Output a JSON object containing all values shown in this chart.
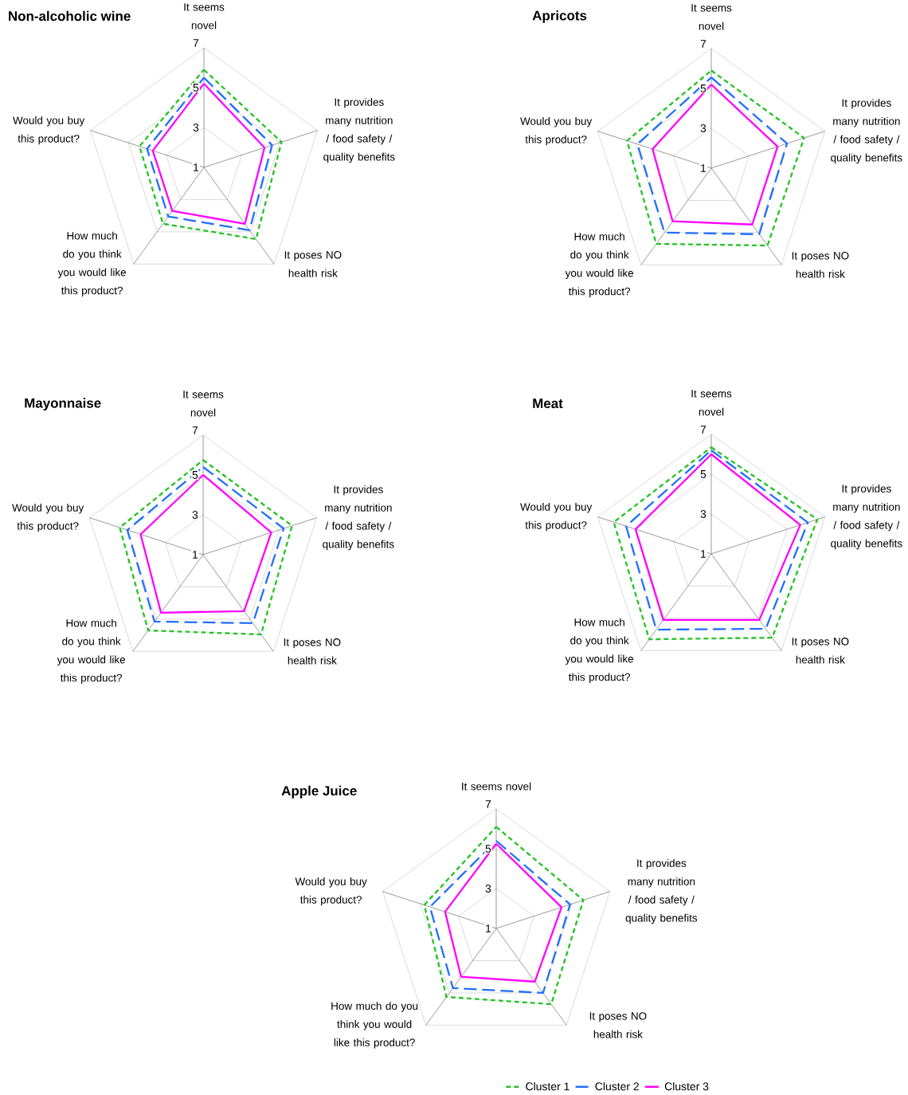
{
  "chart_data": [
    {
      "type": "radar",
      "title": "Non-alcoholic wine",
      "categories": [
        "It seems novel",
        "It provides many nutrition / food safety / quality benefits",
        "It poses NO health risk",
        "How much do you think you would like this product?",
        "Would you buy this product?"
      ],
      "ylim": [
        1,
        7
      ],
      "yticks": [
        1,
        3,
        5,
        7
      ],
      "grid": true,
      "series": [
        {
          "color": "#22c322",
          "line_style": "dashed",
          "values": [
            5.9,
            5.1,
            5.45,
            4.5,
            4.4
          ]
        },
        {
          "color": "#1f6fff",
          "line_style": "dashed",
          "values": [
            5.5,
            4.6,
            4.9,
            4.05,
            4.0
          ]
        },
        {
          "color": "#ff00ff",
          "line_style": "solid",
          "values": [
            5.2,
            4.2,
            4.5,
            3.7,
            3.7
          ]
        }
      ]
    },
    {
      "type": "radar",
      "title": "Apricots",
      "categories": [
        "It seems novel",
        "It provides many nutrition / food safety / quality benefits",
        "It poses NO health risk",
        "How much do you think you would like this product?",
        "Would you buy this product?"
      ],
      "ylim": [
        1,
        7
      ],
      "yticks": [
        1,
        3,
        5,
        7
      ],
      "grid": true,
      "series": [
        {
          "color": "#22c322",
          "line_style": "dashed",
          "values": [
            5.9,
            5.9,
            5.8,
            5.7,
            5.45
          ]
        },
        {
          "color": "#1f6fff",
          "line_style": "dashed",
          "values": [
            5.55,
            5.0,
            5.1,
            5.0,
            4.9
          ]
        },
        {
          "color": "#ff00ff",
          "line_style": "solid",
          "values": [
            5.2,
            4.5,
            4.5,
            4.3,
            4.1
          ]
        }
      ]
    },
    {
      "type": "radar",
      "title": "Mayonnaise",
      "categories": [
        "It seems novel",
        "It provides many nutrition / food safety / quality benefits",
        "It poses NO health risk",
        "How much do you think you would like this product?",
        "Would you buy this product?"
      ],
      "ylim": [
        1,
        7
      ],
      "yticks": [
        1,
        3,
        5,
        7
      ],
      "grid": true,
      "series": [
        {
          "color": "#22c322",
          "line_style": "dashed",
          "values": [
            5.75,
            5.7,
            5.95,
            5.7,
            5.4
          ]
        },
        {
          "color": "#1f6fff",
          "line_style": "dashed",
          "values": [
            5.4,
            5.25,
            5.25,
            5.15,
            5.0
          ]
        },
        {
          "color": "#ff00ff",
          "line_style": "solid",
          "values": [
            5.0,
            4.6,
            4.5,
            4.6,
            4.3
          ]
        }
      ]
    },
    {
      "type": "radar",
      "title": "Meat",
      "categories": [
        "It seems novel",
        "It provides many nutrition / food safety / quality benefits",
        "It poses NO health risk",
        "How much do you think you would like this product?",
        "Would you buy this product?"
      ],
      "ylim": [
        1,
        7
      ],
      "yticks": [
        1,
        3,
        5,
        7
      ],
      "grid": true,
      "series": [
        {
          "color": "#22c322",
          "line_style": "dashed",
          "values": [
            6.35,
            6.6,
            6.2,
            6.3,
            6.15
          ]
        },
        {
          "color": "#1f6fff",
          "line_style": "dashed",
          "values": [
            6.2,
            6.1,
            5.65,
            5.7,
            5.5
          ]
        },
        {
          "color": "#ff00ff",
          "line_style": "solid",
          "values": [
            6.0,
            5.7,
            5.1,
            5.1,
            5.0
          ]
        }
      ]
    },
    {
      "type": "radar",
      "title": "Apple Juice",
      "categories": [
        "It seems novel",
        "It provides many nutrition / food safety / quality benefits",
        "It poses NO health risk",
        "How much do you think you would like this product?",
        "Would you buy this product?"
      ],
      "ylim": [
        1,
        7
      ],
      "yticks": [
        1,
        3,
        5,
        7
      ],
      "grid": true,
      "legend": "bottom",
      "series": [
        {
          "name": "Cluster 1",
          "color": "#22c322",
          "line_style": "dashed",
          "values": [
            6.1,
            5.6,
            5.7,
            5.25,
            4.8
          ]
        },
        {
          "name": "Cluster 2",
          "color": "#1f6fff",
          "line_style": "dashed",
          "values": [
            5.4,
            4.9,
            5.0,
            4.7,
            4.5
          ]
        },
        {
          "name": "Cluster 3",
          "color": "#ff00ff",
          "line_style": "solid",
          "values": [
            5.25,
            4.45,
            4.3,
            4.0,
            3.7
          ]
        }
      ]
    }
  ]
}
